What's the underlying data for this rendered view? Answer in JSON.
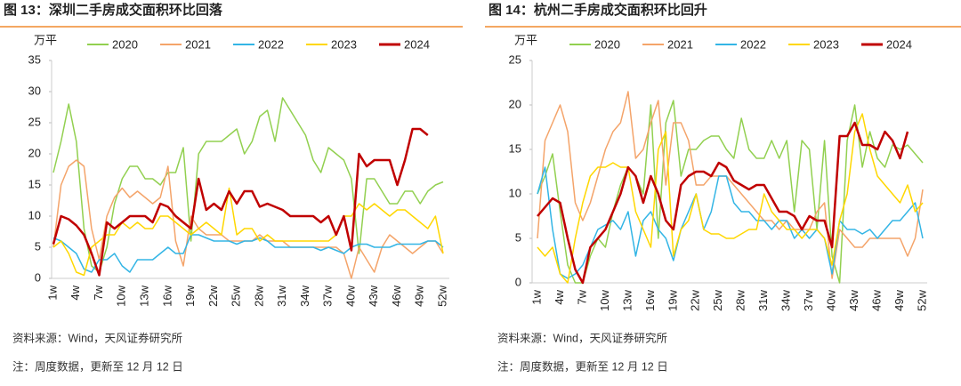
{
  "chart_data": [
    {
      "type": "line",
      "title": "图 13：深圳二手房成交面积环比回落",
      "ylabel": "万平",
      "categories": [
        "1w",
        null,
        null,
        "4w",
        null,
        null,
        "7w",
        null,
        null,
        "10w",
        null,
        null,
        "13w",
        null,
        null,
        "16w",
        null,
        null,
        "19w",
        null,
        null,
        "22w",
        null,
        null,
        "25w",
        null,
        null,
        "28w",
        null,
        null,
        "31w",
        null,
        null,
        "34w",
        null,
        null,
        "37w",
        null,
        null,
        "40w",
        null,
        null,
        "43w",
        null,
        null,
        "46w",
        null,
        null,
        "49w",
        null,
        null,
        "52w"
      ],
      "ylim": [
        0,
        35
      ],
      "yticks": [
        0,
        5,
        10,
        15,
        20,
        25,
        30,
        35
      ],
      "series": [
        {
          "name": "2020",
          "color": "#92d050",
          "width": 1.5,
          "values": [
            17,
            22,
            28,
            22,
            8,
            2,
            1,
            5,
            12,
            16,
            18,
            18,
            16,
            16,
            15,
            17,
            17,
            21,
            6,
            20,
            22,
            22,
            22,
            23,
            24,
            20,
            22,
            26,
            27,
            22,
            29,
            27,
            25,
            23,
            19,
            17,
            21,
            20,
            19,
            16,
            4,
            16,
            16,
            14,
            12,
            12,
            14,
            14,
            12,
            14,
            15,
            15.5
          ]
        },
        {
          "name": "2021",
          "color": "#f4a46a",
          "width": 1.5,
          "values": [
            5,
            15,
            18,
            19,
            18,
            8,
            3,
            10,
            13,
            14.5,
            13,
            14,
            13,
            12,
            13,
            18,
            6,
            2,
            10,
            8,
            7,
            7,
            7,
            6,
            6,
            6,
            6,
            7,
            6,
            6,
            6,
            5,
            5,
            5,
            5,
            5,
            5,
            5,
            4,
            0,
            5,
            3,
            1,
            5,
            7,
            6,
            5,
            4,
            5,
            6,
            6,
            4
          ]
        },
        {
          "name": "2022",
          "color": "#33b5e5",
          "width": 1.5,
          "values": [
            6.5,
            6,
            5,
            4,
            1.5,
            1,
            3,
            3,
            4,
            2,
            1,
            3,
            3,
            3,
            4,
            5,
            4,
            4,
            7,
            7,
            6.5,
            6,
            6,
            6,
            5.5,
            6,
            6,
            6.5,
            6,
            5,
            5,
            5,
            5,
            5,
            5,
            4.5,
            5,
            4.5,
            4,
            5,
            5.5,
            5.5,
            5,
            5,
            5,
            5.5,
            5.5,
            5.5,
            5.5,
            6,
            6,
            5
          ]
        },
        {
          "name": "2023",
          "color": "#ffd700",
          "width": 1.5,
          "values": [
            5,
            6,
            4,
            1,
            0.5,
            5,
            6,
            7,
            7,
            9,
            8,
            9,
            8,
            8,
            10,
            10,
            9,
            8,
            7,
            8,
            9,
            8,
            7,
            14.5,
            7,
            8,
            8,
            6,
            7,
            6,
            6,
            6,
            6,
            6,
            6,
            6,
            6,
            7,
            10,
            10,
            12,
            11,
            12,
            11,
            10,
            11,
            11,
            10,
            9,
            8,
            10,
            4
          ]
        },
        {
          "name": "2024",
          "color": "#c00000",
          "width": 2.5,
          "values": [
            5.5,
            10,
            9.5,
            8.5,
            7,
            4,
            0.5,
            9,
            8,
            9,
            10,
            10,
            10,
            9,
            12,
            11.5,
            10,
            9,
            8,
            16,
            11,
            12,
            11,
            14,
            12,
            14,
            14,
            11.5,
            12,
            11.5,
            11,
            10,
            10,
            10,
            10,
            9,
            10,
            7,
            10,
            4.5,
            20,
            18,
            19,
            19,
            19,
            15,
            19,
            24,
            24,
            23,
            null,
            null
          ]
        }
      ],
      "source": "资料来源：Wind，天风证券研究所",
      "note": "注：周度数据，更新至 12 月 12 日"
    },
    {
      "type": "line",
      "title": "图 14：杭州二手房成交面积环比回升",
      "ylabel": "万平",
      "categories": [
        "1w",
        null,
        null,
        "4w",
        null,
        null,
        "7w",
        null,
        null,
        "10w",
        null,
        null,
        "13w",
        null,
        null,
        "16w",
        null,
        null,
        "19w",
        null,
        null,
        "22w",
        null,
        null,
        "25w",
        null,
        null,
        "28w",
        null,
        null,
        "31w",
        null,
        null,
        "34w",
        null,
        null,
        "37w",
        null,
        null,
        "40w",
        null,
        null,
        "43w",
        null,
        null,
        "46w",
        null,
        null,
        "49w",
        null,
        null,
        "52w"
      ],
      "ylim": [
        0,
        25
      ],
      "yticks": [
        0,
        5,
        10,
        15,
        20,
        25
      ],
      "series": [
        {
          "name": "2020",
          "color": "#92d050",
          "width": 1.5,
          "values": [
            10,
            12,
            14.5,
            8,
            2,
            0,
            0,
            3,
            5,
            4,
            8,
            11,
            13,
            12,
            10,
            20,
            5,
            18,
            20.5,
            12,
            15,
            15,
            16,
            16.5,
            16.5,
            15,
            14,
            18.5,
            15,
            14,
            14,
            16,
            14,
            16,
            8,
            16,
            15,
            6,
            16,
            3,
            0,
            16,
            20,
            13,
            17,
            14,
            13,
            15.5,
            15,
            15.5,
            14.5,
            13.5
          ]
        },
        {
          "name": "2021",
          "color": "#f4a46a",
          "width": 1.5,
          "values": [
            5,
            16,
            18,
            20,
            17,
            9,
            7,
            9,
            12,
            15,
            17,
            18,
            21.5,
            14,
            15,
            18,
            20.5,
            11,
            18,
            18,
            16,
            11,
            11,
            12,
            12,
            12,
            11,
            10,
            9,
            8,
            7,
            7,
            6,
            7,
            6,
            6,
            6,
            8,
            9,
            0.5,
            6,
            5,
            4,
            4,
            5,
            5,
            5,
            5,
            5,
            3,
            5,
            10.5
          ]
        },
        {
          "name": "2022",
          "color": "#33b5e5",
          "width": 1.5,
          "values": [
            10,
            13,
            6,
            1,
            0.5,
            1,
            2,
            4,
            6,
            6.5,
            7,
            6,
            8,
            3,
            7,
            8,
            6,
            5,
            2.5,
            6,
            8,
            10,
            6,
            8,
            12,
            12,
            9,
            8,
            8,
            7,
            7,
            6,
            7,
            7,
            5,
            6,
            5,
            6,
            5,
            1,
            7,
            6,
            6,
            5.5,
            6,
            5,
            6,
            7,
            7,
            8,
            9,
            5
          ]
        },
        {
          "name": "2023",
          "color": "#ffd700",
          "width": 1.5,
          "values": [
            4,
            3,
            4,
            1,
            0,
            5,
            9,
            12,
            13,
            13,
            13.5,
            13,
            13,
            8,
            6,
            4,
            15,
            17,
            3,
            6,
            7,
            10,
            6,
            5.5,
            5.5,
            5,
            5,
            5.5,
            6,
            6,
            10,
            8,
            7,
            6,
            6,
            5,
            6,
            6,
            5,
            2,
            7,
            10,
            17,
            19,
            15,
            12,
            11,
            10,
            9,
            11,
            8,
            9
          ]
        },
        {
          "name": "2024",
          "color": "#c00000",
          "width": 2.5,
          "values": [
            7.5,
            8.5,
            9.5,
            9,
            5,
            1.5,
            0,
            4,
            5,
            6,
            8,
            10,
            13,
            12,
            9,
            12,
            10,
            7,
            6,
            11,
            12,
            12.5,
            12.5,
            12,
            13.5,
            13,
            11.5,
            11,
            10.5,
            11,
            11,
            9.5,
            8,
            8,
            7.5,
            6,
            7.5,
            7,
            7,
            4,
            16.5,
            16.5,
            18,
            15.5,
            15.5,
            15,
            17,
            16,
            14,
            17,
            null,
            null
          ]
        }
      ],
      "source": "资料来源：Wind，天风证券研究所",
      "note": "注：周度数据，更新至 12 月 12 日"
    }
  ]
}
